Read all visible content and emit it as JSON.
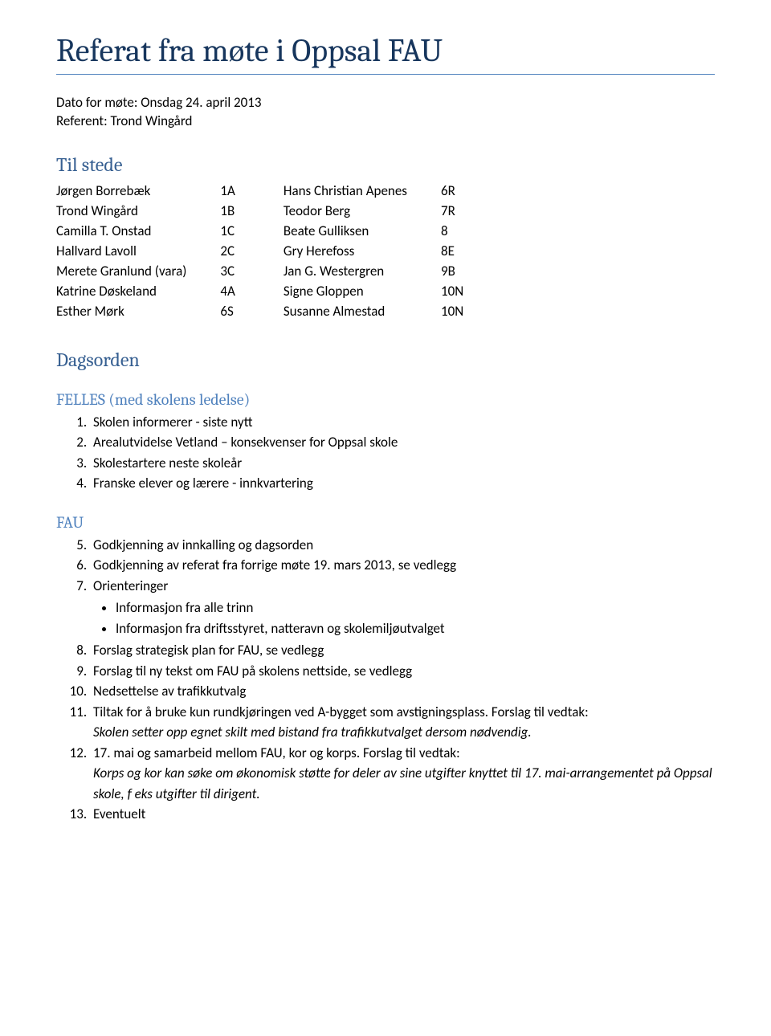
{
  "title": "Referat fra møte i Oppsal FAU",
  "meta": {
    "date_line": "Dato for møte: Onsdag 24. april 2013",
    "referent_line": "Referent: Trond Wingård"
  },
  "attendees": {
    "heading": "Til stede",
    "left": [
      {
        "name": "Jørgen Borrebæk",
        "cls": "1A"
      },
      {
        "name": "Trond Wingård",
        "cls": "1B"
      },
      {
        "name": "Camilla T. Onstad",
        "cls": "1C"
      },
      {
        "name": "Hallvard Lavoll",
        "cls": "2C"
      },
      {
        "name": "Merete Granlund (vara)",
        "cls": "3C"
      },
      {
        "name": "Katrine Døskeland",
        "cls": "4A"
      },
      {
        "name": "Esther Mørk",
        "cls": "6S"
      }
    ],
    "right": [
      {
        "name": "Hans Christian Apenes",
        "cls": "6R"
      },
      {
        "name": "Teodor Berg",
        "cls": "7R"
      },
      {
        "name": "Beate Gulliksen",
        "cls": "8"
      },
      {
        "name": "Gry Herefoss",
        "cls": "8E"
      },
      {
        "name": "Jan G. Westergren",
        "cls": "9B"
      },
      {
        "name": "Signe Gloppen",
        "cls": "10N"
      },
      {
        "name": "Susanne Almestad",
        "cls": "10N"
      }
    ]
  },
  "agenda_heading": "Dagsorden",
  "felles": {
    "heading": "FELLES (med skolens ledelse)",
    "items": [
      "Skolen informerer - siste nytt",
      "Arealutvidelse Vetland – konsekvenser for Oppsal skole",
      "Skolestartere neste skoleår",
      "Franske elever og lærere - innkvartering"
    ]
  },
  "fau": {
    "heading": "FAU",
    "i5": "Godkjenning av innkalling og dagsorden",
    "i6": "Godkjenning av referat fra forrige møte 19. mars 2013, se vedlegg",
    "i7_lead": "Orienteringer",
    "i7_b1": "Informasjon fra alle trinn",
    "i7_b2": "Informasjon fra driftsstyret, natteravn og skolemiljøutvalget",
    "i8": "Forslag strategisk plan for FAU, se vedlegg",
    "i9": "Forslag til ny tekst om FAU på skolens nettside, se vedlegg",
    "i10": "Nedsettelse av trafikkutvalg",
    "i11_lead": "Tiltak for å bruke kun rundkjøringen ved A-bygget som avstigningsplass. Forslag til vedtak:",
    "i11_ital": "Skolen setter opp egnet skilt med bistand fra trafikkutvalget dersom nødvendig.",
    "i12_lead": "17. mai og samarbeid mellom FAU, kor og korps. Forslag til vedtak:",
    "i12_ital": "Korps og kor kan søke om økonomisk støtte for deler av sine utgifter knyttet til 17. mai-arrangementet på Oppsal skole, f eks utgifter til dirigent.",
    "i13": "Eventuelt"
  }
}
